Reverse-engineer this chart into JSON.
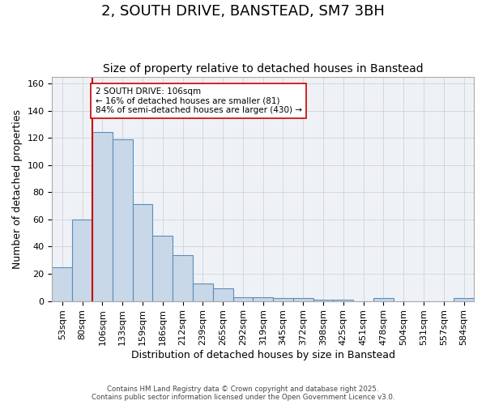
{
  "title": "2, SOUTH DRIVE, BANSTEAD, SM7 3BH",
  "subtitle": "Size of property relative to detached houses in Banstead",
  "xlabel": "Distribution of detached houses by size in Banstead",
  "ylabel": "Number of detached properties",
  "categories": [
    "53sqm",
    "80sqm",
    "106sqm",
    "133sqm",
    "159sqm",
    "186sqm",
    "212sqm",
    "239sqm",
    "265sqm",
    "292sqm",
    "319sqm",
    "345sqm",
    "372sqm",
    "398sqm",
    "425sqm",
    "451sqm",
    "478sqm",
    "504sqm",
    "531sqm",
    "557sqm",
    "584sqm"
  ],
  "bar_heights": [
    25,
    60,
    124,
    119,
    71,
    48,
    34,
    13,
    9,
    3,
    3,
    2,
    2,
    1,
    1,
    0,
    2,
    0,
    0,
    0,
    2
  ],
  "bar_color": "#c8d8e8",
  "bar_edge_color": "#5b8db8",
  "property_line_color": "#cc0000",
  "annotation_text": "2 SOUTH DRIVE: 106sqm\n← 16% of detached houses are smaller (81)\n84% of semi-detached houses are larger (430) →",
  "annotation_box_color": "#cc0000",
  "ylim": [
    0,
    165
  ],
  "yticks": [
    0,
    20,
    40,
    60,
    80,
    100,
    120,
    140,
    160
  ],
  "grid_color": "#cccccc",
  "bg_color": "#eef2f7",
  "footnote": "Contains HM Land Registry data © Crown copyright and database right 2025.\nContains public sector information licensed under the Open Government Licence v3.0.",
  "title_fontsize": 13,
  "subtitle_fontsize": 10,
  "axis_label_fontsize": 9,
  "tick_fontsize": 8
}
